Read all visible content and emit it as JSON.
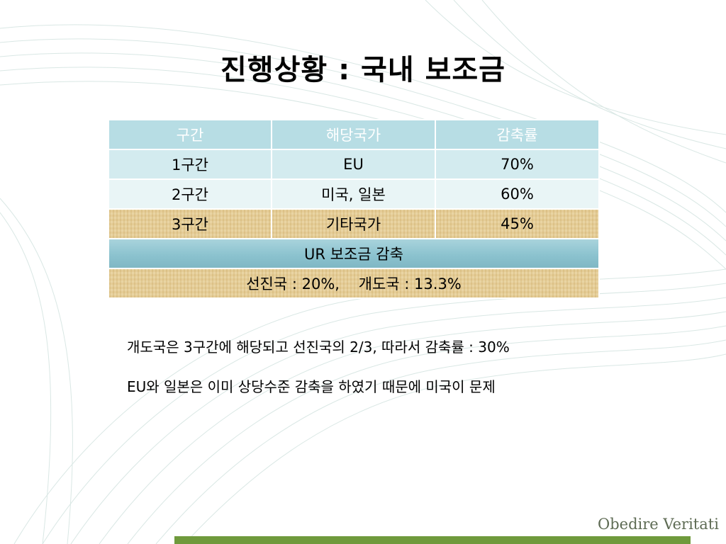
{
  "slide": {
    "title": "진행상황 : 국내 보조금",
    "brand": "Obedire Veritati"
  },
  "table": {
    "headers": [
      "구간",
      "해당국가",
      "감축률"
    ],
    "rows": [
      [
        "1구간",
        "EU",
        "70%"
      ],
      [
        "2구간",
        "미국, 일본",
        "60%"
      ],
      [
        "3구간",
        "기타국가",
        "45%"
      ]
    ],
    "merged_header": "UR 보조금 감축",
    "merged_value": "선진국 : 20%,    개도국 : 13.3%"
  },
  "notes": [
    "개도국은 3구간에 해당되고 선진국의 2/3, 따라서 감축률 : 30%",
    "EU와 일본은 이미 상당수준 감축을 하였기 때문에 미국이 문제"
  ],
  "colors": {
    "header_bg": "#b7dde4",
    "row_light": "#d3ebef",
    "row_lighter": "#e9f5f6",
    "parchment": "#e7cf98",
    "teal_bar": "#8cc3cf",
    "brand_green": "#6f9a3c"
  }
}
